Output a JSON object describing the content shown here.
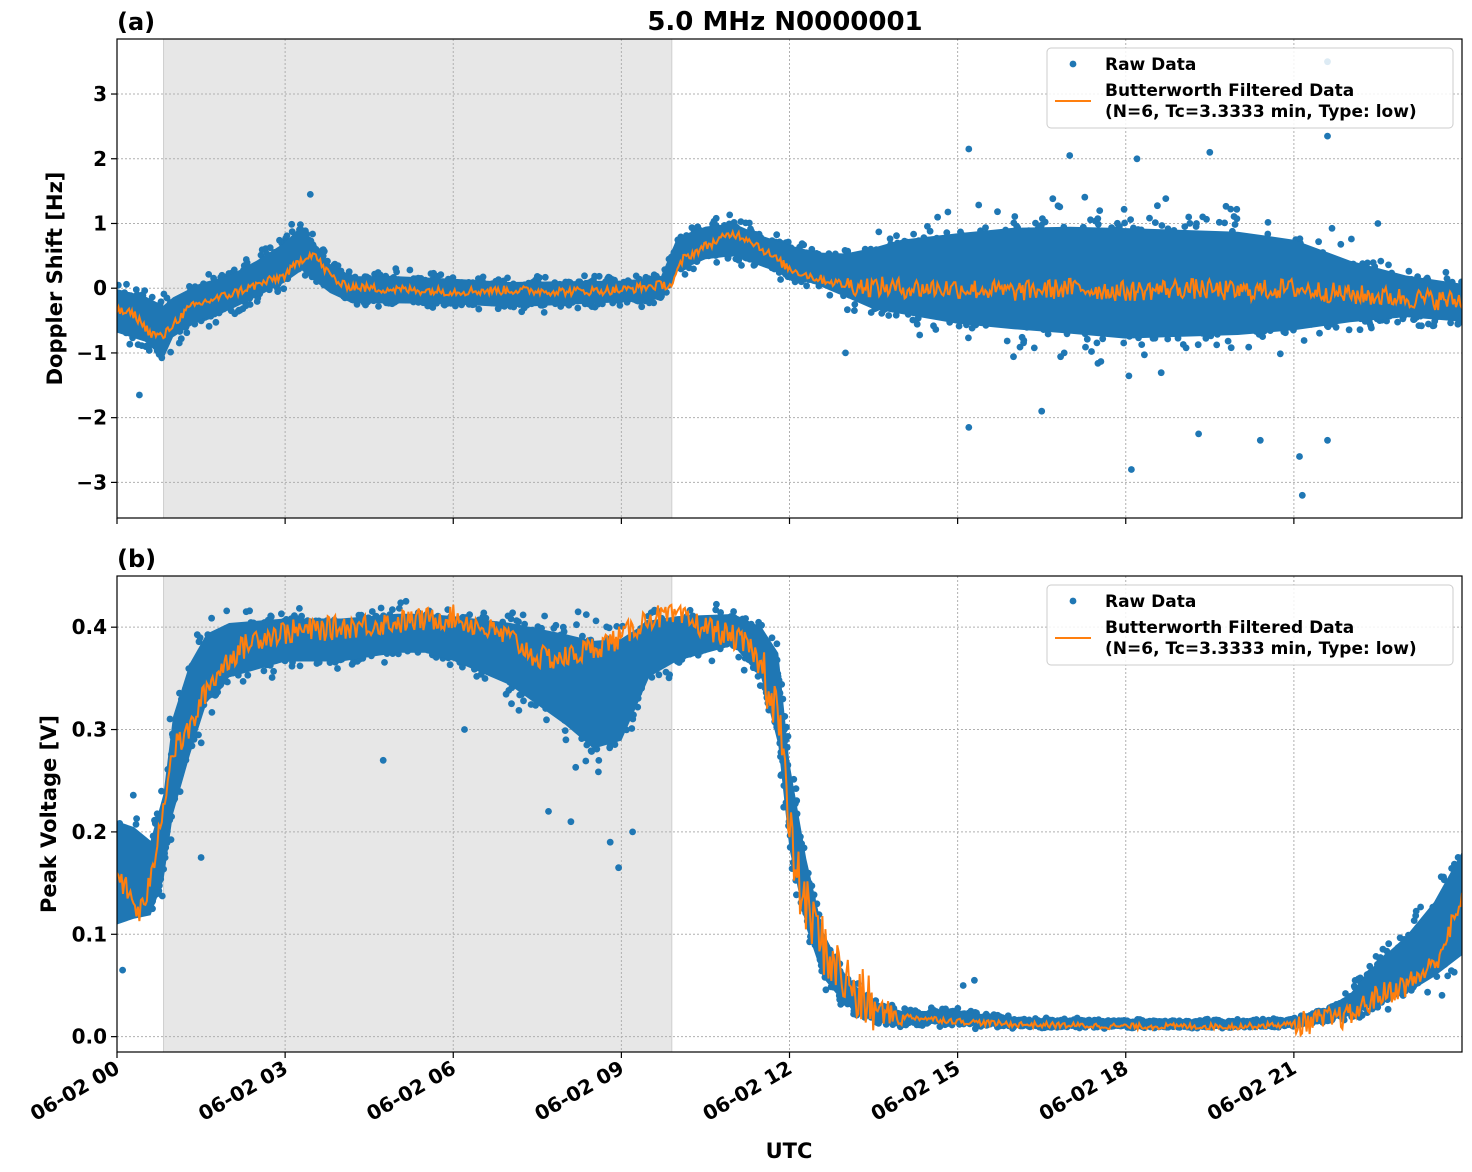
{
  "figure": {
    "title": "5.0 MHz N0000001",
    "xlabel": "UTC",
    "x_tick_labels": [
      "06-02 00",
      "06-02 03",
      "06-02 06",
      "06-02 09",
      "06-02 12",
      "06-02 15",
      "06-02 18",
      "06-02 21"
    ]
  },
  "chart_data": [
    {
      "type": "scatter",
      "panel_label": "(a)",
      "title": "5.0 MHz N0000001",
      "xlabel": "",
      "ylabel": "Doppler Shift [Hz]",
      "x_unit": "hours UTC on 06-02",
      "xlim": [
        0,
        24
      ],
      "ylim": [
        -3.55,
        3.85
      ],
      "yticks": [
        3,
        2,
        1,
        0,
        -1,
        -2,
        -3
      ],
      "ytick_labels": [
        "3",
        "2",
        "1",
        "0",
        "−1",
        "−2",
        "−3"
      ],
      "grid": true,
      "legend_position": "top-right",
      "shaded_region_hours": [
        0.83,
        9.9
      ],
      "series": [
        {
          "name": "Raw Data",
          "marker": "dot",
          "color": "#1f77b4",
          "band_x": [
            0,
            0.5,
            0.83,
            1.0,
            1.5,
            2.0,
            2.5,
            3.0,
            3.3,
            3.5,
            3.8,
            4.2,
            5,
            6,
            7,
            8,
            9,
            9.7,
            10.0,
            10.5,
            11.0,
            11.5,
            12.0,
            12.5,
            13.0,
            13.5,
            14.0,
            15,
            16,
            17,
            18,
            19,
            20,
            21,
            22,
            23,
            24
          ],
          "band_low": [
            -0.95,
            -1.1,
            -1.4,
            -1.0,
            -0.7,
            -0.55,
            -0.35,
            -0.15,
            0.0,
            -0.1,
            -0.25,
            -0.4,
            -0.4,
            -0.4,
            -0.45,
            -0.4,
            -0.35,
            -0.3,
            0.05,
            0.25,
            0.3,
            0.15,
            0.0,
            -0.15,
            -0.4,
            -0.7,
            -0.85,
            -1.1,
            -1.25,
            -1.35,
            -1.45,
            -1.4,
            -1.35,
            -1.2,
            -0.9,
            -0.7,
            -0.75
          ],
          "band_high": [
            0.25,
            0.15,
            0.05,
            0.1,
            0.3,
            0.4,
            0.65,
            0.95,
            1.25,
            0.95,
            0.55,
            0.35,
            0.35,
            0.3,
            0.25,
            0.25,
            0.25,
            0.3,
            1.0,
            1.15,
            1.2,
            1.0,
            0.85,
            0.75,
            0.8,
            1.0,
            1.2,
            1.4,
            1.55,
            1.6,
            1.6,
            1.55,
            1.5,
            1.3,
            0.8,
            0.45,
            0.3
          ],
          "outliers": [
            [
              15.2,
              -2.15
            ],
            [
              16.5,
              -1.9
            ],
            [
              18.1,
              -2.8
            ],
            [
              19.3,
              -2.25
            ],
            [
              20.4,
              -2.35
            ],
            [
              21.1,
              -2.6
            ],
            [
              21.15,
              -3.2
            ],
            [
              21.6,
              -2.35
            ],
            [
              15.2,
              2.15
            ],
            [
              17.0,
              2.05
            ],
            [
              18.2,
              2.0
            ],
            [
              19.5,
              2.1
            ],
            [
              21.6,
              2.35
            ],
            [
              21.6,
              3.5
            ],
            [
              3.45,
              1.45
            ],
            [
              0.4,
              -1.65
            ],
            [
              22.5,
              1.0
            ],
            [
              13.0,
              -1.0
            ]
          ]
        },
        {
          "name": "Butterworth Filtered Data\n(N=6, Tc=3.3333 min, Type: low)",
          "marker": "line",
          "color": "#ff7f0e",
          "x": [
            0,
            0.3,
            0.6,
            0.83,
            1.0,
            1.3,
            1.6,
            2.0,
            2.5,
            3.0,
            3.3,
            3.5,
            3.7,
            4.0,
            4.5,
            5,
            6,
            7,
            8,
            9,
            9.7,
            9.9,
            10.1,
            10.5,
            11.0,
            11.3,
            11.6,
            12.0,
            12.5,
            13.0,
            14,
            15,
            16,
            17,
            18,
            19,
            20,
            21,
            22,
            23,
            24
          ],
          "y": [
            -0.35,
            -0.4,
            -0.7,
            -0.75,
            -0.55,
            -0.3,
            -0.2,
            -0.1,
            0.05,
            0.2,
            0.45,
            0.55,
            0.3,
            0.05,
            0.0,
            -0.02,
            -0.05,
            -0.03,
            -0.05,
            -0.03,
            0.05,
            0.05,
            0.45,
            0.65,
            0.85,
            0.75,
            0.55,
            0.3,
            0.15,
            0.05,
            0.0,
            0.0,
            -0.05,
            0.0,
            -0.05,
            0.0,
            -0.05,
            0.0,
            -0.1,
            -0.15,
            -0.2
          ]
        }
      ]
    },
    {
      "type": "scatter",
      "panel_label": "(b)",
      "title": "",
      "xlabel": "UTC",
      "ylabel": "Peak Voltage [V]",
      "x_unit": "hours UTC on 06-02",
      "xlim": [
        0,
        24
      ],
      "ylim": [
        -0.015,
        0.45
      ],
      "yticks": [
        0.0,
        0.1,
        0.2,
        0.3,
        0.4
      ],
      "ytick_labels": [
        "0.0",
        "0.1",
        "0.2",
        "0.3",
        "0.4"
      ],
      "grid": true,
      "legend_position": "top-right",
      "shaded_region_hours": [
        0.83,
        9.9
      ],
      "series": [
        {
          "name": "Raw Data",
          "marker": "dot",
          "color": "#1f77b4",
          "band_x": [
            0,
            0.3,
            0.6,
            0.83,
            1.0,
            1.3,
            1.6,
            2.0,
            2.5,
            3.0,
            4,
            5,
            5.5,
            6,
            7,
            8,
            8.5,
            9,
            9.5,
            10,
            11,
            11.5,
            11.8,
            12.0,
            12.3,
            12.6,
            13.0,
            13.5,
            14,
            15,
            16,
            18,
            20,
            21,
            21.5,
            22,
            22.5,
            23,
            23.5,
            24
          ],
          "band_low": [
            0.07,
            0.08,
            0.09,
            0.12,
            0.18,
            0.24,
            0.3,
            0.33,
            0.34,
            0.35,
            0.35,
            0.36,
            0.36,
            0.35,
            0.32,
            0.27,
            0.24,
            0.25,
            0.33,
            0.35,
            0.37,
            0.33,
            0.25,
            0.15,
            0.08,
            0.04,
            0.02,
            0.01,
            0.008,
            0.007,
            0.007,
            0.007,
            0.007,
            0.008,
            0.01,
            0.012,
            0.015,
            0.02,
            0.03,
            0.04
          ],
          "band_high": [
            0.25,
            0.24,
            0.22,
            0.27,
            0.35,
            0.4,
            0.42,
            0.425,
            0.425,
            0.425,
            0.425,
            0.428,
            0.428,
            0.428,
            0.428,
            0.428,
            0.428,
            0.428,
            0.428,
            0.428,
            0.425,
            0.42,
            0.41,
            0.3,
            0.2,
            0.12,
            0.07,
            0.04,
            0.03,
            0.03,
            0.02,
            0.018,
            0.018,
            0.02,
            0.03,
            0.05,
            0.09,
            0.12,
            0.16,
            0.22
          ],
          "outliers": [
            [
              0.1,
              0.065
            ],
            [
              1.5,
              0.175
            ],
            [
              4.75,
              0.27
            ],
            [
              6.2,
              0.3
            ],
            [
              7.7,
              0.22
            ],
            [
              8.1,
              0.21
            ],
            [
              8.8,
              0.19
            ],
            [
              8.95,
              0.165
            ],
            [
              9.2,
              0.2
            ],
            [
              15.3,
              0.055
            ],
            [
              15.1,
              0.05
            ]
          ]
        },
        {
          "name": "Butterworth Filtered Data\n(N=6, Tc=3.3333 min, Type: low)",
          "marker": "line",
          "color": "#ff7f0e",
          "x": [
            0,
            0.2,
            0.4,
            0.6,
            0.83,
            1.0,
            1.3,
            1.6,
            2.0,
            2.5,
            3,
            4,
            5,
            6,
            6.5,
            7,
            7.5,
            8,
            8.5,
            9,
            9.5,
            10,
            10.5,
            11,
            11.3,
            11.6,
            11.8,
            12.0,
            12.2,
            12.5,
            12.8,
            13.2,
            13.6,
            14,
            15,
            16,
            18,
            20,
            21,
            22,
            22.5,
            23,
            23.5,
            24
          ],
          "y": [
            0.16,
            0.14,
            0.12,
            0.15,
            0.23,
            0.28,
            0.3,
            0.34,
            0.37,
            0.39,
            0.395,
            0.4,
            0.405,
            0.41,
            0.4,
            0.39,
            0.37,
            0.37,
            0.38,
            0.39,
            0.41,
            0.41,
            0.4,
            0.39,
            0.38,
            0.35,
            0.32,
            0.2,
            0.14,
            0.1,
            0.07,
            0.04,
            0.025,
            0.02,
            0.015,
            0.012,
            0.01,
            0.01,
            0.012,
            0.02,
            0.04,
            0.05,
            0.07,
            0.13
          ]
        }
      ]
    }
  ]
}
